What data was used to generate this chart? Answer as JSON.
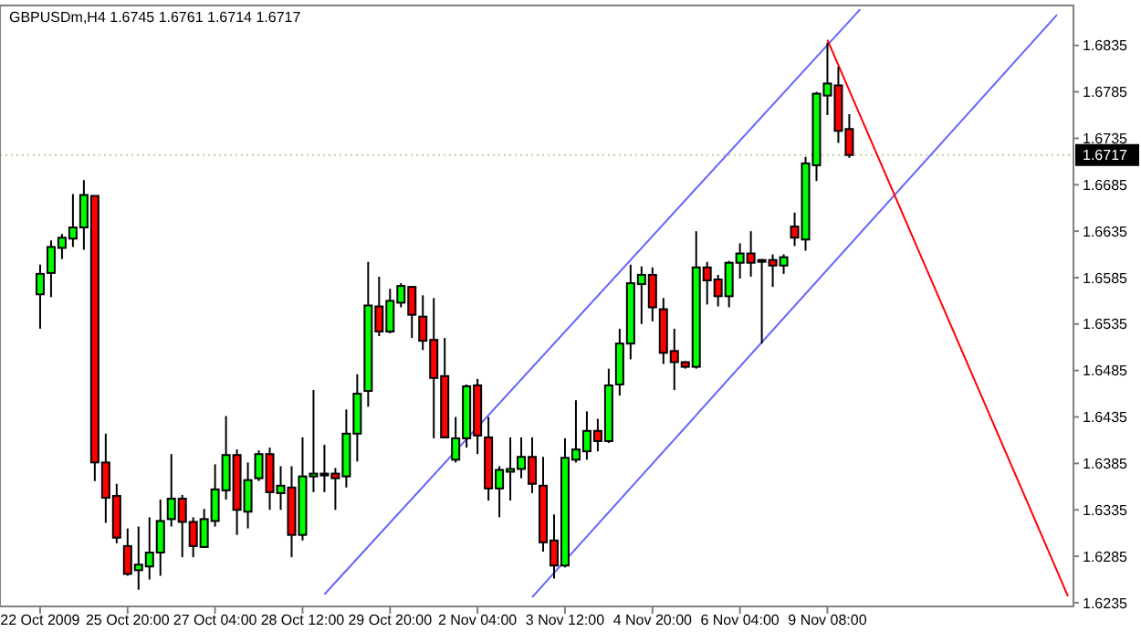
{
  "chart_data": {
    "type": "candlestick",
    "title": "GBPUSDm,H4  1.6745 1.6761 1.6714 1.6717",
    "categories": [
      "22 Oct 2009",
      null,
      null,
      null,
      null,
      null,
      null,
      null,
      "25 Oct 20:00",
      null,
      null,
      null,
      null,
      null,
      null,
      null,
      "27 Oct 04:00",
      null,
      null,
      null,
      null,
      null,
      null,
      null,
      "28 Oct 12:00",
      null,
      null,
      null,
      null,
      null,
      null,
      null,
      "29 Oct 20:00",
      null,
      null,
      null,
      null,
      null,
      null,
      null,
      "2 Nov 04:00",
      null,
      null,
      null,
      null,
      null,
      null,
      null,
      "3 Nov 12:00",
      null,
      null,
      null,
      null,
      null,
      null,
      null,
      "4 Nov 20:00",
      null,
      null,
      null,
      null,
      null,
      null,
      null,
      "6 Nov 04:00",
      null,
      null,
      null,
      null,
      null,
      null,
      null,
      "9 Nov 08:00",
      null,
      null,
      null,
      null,
      null,
      null,
      null,
      null,
      null,
      null,
      null,
      null,
      null,
      null,
      null,
      null,
      null,
      null,
      null,
      null,
      null,
      null
    ],
    "ohlc": [
      [
        1.6567,
        1.6599,
        1.653,
        1.6589
      ],
      [
        1.659,
        1.6625,
        1.6564,
        1.6618
      ],
      [
        1.6617,
        1.6632,
        1.6605,
        1.6628
      ],
      [
        1.6627,
        1.6675,
        1.6618,
        1.6639
      ],
      [
        1.6639,
        1.669,
        1.6615,
        1.6674
      ],
      [
        1.6673,
        1.6673,
        1.6366,
        1.6386
      ],
      [
        1.6386,
        1.6417,
        1.6321,
        1.6348
      ],
      [
        1.635,
        1.6363,
        1.6299,
        1.6305
      ],
      [
        1.6296,
        1.6315,
        1.6264,
        1.6266
      ],
      [
        1.627,
        1.6317,
        1.6249,
        1.6276
      ],
      [
        1.6274,
        1.6327,
        1.626,
        1.6289
      ],
      [
        1.6289,
        1.6346,
        1.6264,
        1.6323
      ],
      [
        1.6325,
        1.6395,
        1.6317,
        1.6347
      ],
      [
        1.6347,
        1.6351,
        1.6284,
        1.6322
      ],
      [
        1.6322,
        1.6327,
        1.6284,
        1.6296
      ],
      [
        1.6295,
        1.6336,
        1.6294,
        1.6325
      ],
      [
        1.6323,
        1.6384,
        1.6317,
        1.6357
      ],
      [
        1.6356,
        1.6436,
        1.6346,
        1.6394
      ],
      [
        1.6394,
        1.64,
        1.6308,
        1.6335
      ],
      [
        1.6333,
        1.6386,
        1.6315,
        1.6367
      ],
      [
        1.6369,
        1.6399,
        1.6366,
        1.6395
      ],
      [
        1.6395,
        1.6402,
        1.6335,
        1.6354
      ],
      [
        1.6353,
        1.6382,
        1.6335,
        1.6361
      ],
      [
        1.6359,
        1.6382,
        1.6284,
        1.6308
      ],
      [
        1.6308,
        1.6413,
        1.6302,
        1.6371
      ],
      [
        1.6371,
        1.6464,
        1.6354,
        1.6374
      ],
      [
        1.6374,
        1.6405,
        1.6354,
        1.6373
      ],
      [
        1.6374,
        1.638,
        1.6335,
        1.6369
      ],
      [
        1.6371,
        1.6443,
        1.6359,
        1.6417
      ],
      [
        1.6417,
        1.6481,
        1.6387,
        1.646
      ],
      [
        1.6463,
        1.6602,
        1.6446,
        1.6555
      ],
      [
        1.6554,
        1.6586,
        1.6522,
        1.6527
      ],
      [
        1.6527,
        1.6573,
        1.6525,
        1.656
      ],
      [
        1.6558,
        1.6579,
        1.6553,
        1.6576
      ],
      [
        1.6575,
        1.6576,
        1.652,
        1.6545
      ],
      [
        1.6543,
        1.6566,
        1.6507,
        1.6517
      ],
      [
        1.6518,
        1.6563,
        1.6412,
        1.6477
      ],
      [
        1.6479,
        1.652,
        1.6412,
        1.6413
      ],
      [
        1.6389,
        1.6435,
        1.6386,
        1.6412
      ],
      [
        1.6412,
        1.647,
        1.6402,
        1.6468
      ],
      [
        1.6469,
        1.6476,
        1.6395,
        1.6415
      ],
      [
        1.6413,
        1.6435,
        1.6345,
        1.6358
      ],
      [
        1.6358,
        1.6382,
        1.6327,
        1.6378
      ],
      [
        1.6376,
        1.6413,
        1.6345,
        1.6379
      ],
      [
        1.6379,
        1.6413,
        1.6369,
        1.6392
      ],
      [
        1.6392,
        1.6413,
        1.6353,
        1.6363
      ],
      [
        1.6361,
        1.6392,
        1.629,
        1.63
      ],
      [
        1.6302,
        1.633,
        1.6261,
        1.6275
      ],
      [
        1.6275,
        1.6412,
        1.6273,
        1.6391
      ],
      [
        1.6389,
        1.6453,
        1.6386,
        1.64
      ],
      [
        1.6398,
        1.6441,
        1.6389,
        1.642
      ],
      [
        1.642,
        1.6433,
        1.6398,
        1.6409
      ],
      [
        1.6409,
        1.6487,
        1.6407,
        1.6469
      ],
      [
        1.647,
        1.653,
        1.6458,
        1.6514
      ],
      [
        1.6514,
        1.6599,
        1.6497,
        1.6579
      ],
      [
        1.6578,
        1.6597,
        1.6535,
        1.6588
      ],
      [
        1.6588,
        1.6596,
        1.6538,
        1.6553
      ],
      [
        1.6551,
        1.6563,
        1.6492,
        1.6504
      ],
      [
        1.6506,
        1.653,
        1.6464,
        1.6494
      ],
      [
        1.6494,
        1.6495,
        1.6487,
        1.6489
      ],
      [
        1.6489,
        1.6635,
        1.6487,
        1.6596
      ],
      [
        1.6596,
        1.6602,
        1.6556,
        1.6582
      ],
      [
        1.6583,
        1.6588,
        1.6554,
        1.6565
      ],
      [
        1.6565,
        1.6603,
        1.6553,
        1.6601
      ],
      [
        1.6601,
        1.6622,
        1.6584,
        1.6611
      ],
      [
        1.6611,
        1.6635,
        1.6586,
        1.6601
      ],
      [
        1.6604,
        1.6605,
        1.6514,
        1.6603
      ],
      [
        1.6604,
        1.661,
        1.6575,
        1.6598
      ],
      [
        1.6598,
        1.661,
        1.6589,
        1.6607
      ],
      [
        1.664,
        1.6655,
        1.6619,
        1.6628
      ],
      [
        1.6626,
        1.6715,
        1.6614,
        1.6708
      ],
      [
        1.6706,
        1.6785,
        1.6689,
        1.6783
      ],
      [
        1.6781,
        1.6838,
        1.676,
        1.6794
      ],
      [
        1.6792,
        1.6812,
        1.673,
        1.6743
      ],
      [
        1.6745,
        1.6761,
        1.6714,
        1.6717
      ],
      null,
      null,
      null,
      null,
      null,
      null,
      null,
      null,
      null,
      null,
      null,
      null,
      null,
      null,
      null,
      null,
      null,
      null,
      null,
      null
    ],
    "colors": [
      "#00ff00",
      "#00ff00",
      "#00ff00",
      "#00ff00",
      "#00ff00",
      "#ff0000",
      "#ff0000",
      "#ff0000",
      "#ff0000",
      "#00ff00",
      "#00ff00",
      "#00ff00",
      "#00ff00",
      "#ff0000",
      "#ff0000",
      "#00ff00",
      "#00ff00",
      "#00ff00",
      "#ff0000",
      "#00ff00",
      "#00ff00",
      "#ff0000",
      "#00ff00",
      "#ff0000",
      "#00ff00",
      "#00ff00",
      "#ff0000",
      "#ff0000",
      "#00ff00",
      "#00ff00",
      "#00ff00",
      "#ff0000",
      "#00ff00",
      "#00ff00",
      "#ff0000",
      "#ff0000",
      "#ff0000",
      "#ff0000",
      "#00ff00",
      "#00ff00",
      "#ff0000",
      "#ff0000",
      "#00ff00",
      "#00ff00",
      "#00ff00",
      "#ff0000",
      "#ff0000",
      "#ff0000",
      "#00ff00",
      "#00ff00",
      "#00ff00",
      "#ff0000",
      "#00ff00",
      "#00ff00",
      "#00ff00",
      "#00ff00",
      "#ff0000",
      "#ff0000",
      "#ff0000",
      "#ff0000",
      "#00ff00",
      "#ff0000",
      "#ff0000",
      "#00ff00",
      "#00ff00",
      "#ff0000",
      "#ff0000",
      "#ff0000",
      "#00ff00",
      "#ff0000",
      "#00ff00",
      "#00ff00",
      "#00ff00",
      "#ff0000",
      "#ff0000",
      null,
      null,
      null,
      null,
      null,
      null,
      null,
      null,
      null,
      null,
      null,
      null,
      null,
      null,
      null,
      null,
      null,
      null,
      null,
      null
    ],
    "series": [
      {
        "type": "line",
        "color": "#6464ff",
        "values": [
          null,
          null,
          null,
          null,
          null,
          null,
          null,
          null,
          null,
          null,
          null,
          null,
          null,
          null,
          null,
          null,
          null,
          null,
          null,
          null,
          null,
          null,
          null,
          null,
          null,
          null,
          1.6244,
          null,
          null,
          null,
          null,
          null,
          null,
          null,
          null,
          null,
          null,
          null,
          null,
          null,
          null,
          null,
          null,
          null,
          null,
          null,
          null,
          null,
          null,
          null,
          null,
          null,
          null,
          null,
          null,
          null,
          null,
          null,
          null,
          null,
          null,
          null,
          null,
          null,
          null,
          null,
          null,
          null,
          null,
          null,
          null,
          null,
          null,
          null,
          null,
          1.6874,
          null,
          null,
          null,
          null,
          null,
          null,
          null,
          null,
          null,
          null,
          null,
          null,
          null,
          null,
          null,
          null,
          null,
          null,
          null
        ]
      },
      {
        "type": "line",
        "color": "#6464ff",
        "values": [
          null,
          null,
          null,
          null,
          null,
          null,
          null,
          null,
          null,
          null,
          null,
          null,
          null,
          null,
          null,
          null,
          null,
          null,
          null,
          null,
          null,
          null,
          null,
          null,
          null,
          null,
          null,
          null,
          null,
          null,
          null,
          null,
          null,
          null,
          null,
          null,
          null,
          null,
          null,
          null,
          null,
          null,
          null,
          null,
          null,
          1.6241,
          null,
          null,
          null,
          null,
          null,
          null,
          null,
          null,
          null,
          null,
          null,
          null,
          null,
          null,
          null,
          null,
          null,
          null,
          null,
          null,
          null,
          null,
          null,
          null,
          null,
          null,
          null,
          null,
          null,
          null,
          null,
          null,
          null,
          null,
          null,
          null,
          null,
          null,
          null,
          null,
          null,
          null,
          null,
          null,
          null,
          null,
          null,
          1.6868,
          null
        ]
      },
      {
        "type": "line",
        "color": "#ff0000",
        "values": [
          null,
          null,
          null,
          null,
          null,
          null,
          null,
          null,
          null,
          null,
          null,
          null,
          null,
          null,
          null,
          null,
          null,
          null,
          null,
          null,
          null,
          null,
          null,
          null,
          null,
          null,
          null,
          null,
          null,
          null,
          null,
          null,
          null,
          null,
          null,
          null,
          null,
          null,
          null,
          null,
          null,
          null,
          null,
          null,
          null,
          null,
          null,
          null,
          null,
          null,
          null,
          null,
          null,
          null,
          null,
          null,
          null,
          null,
          null,
          null,
          null,
          null,
          null,
          null,
          null,
          null,
          null,
          null,
          null,
          null,
          null,
          null,
          1.6841,
          null,
          null,
          null,
          null,
          null,
          null,
          null,
          null,
          null,
          null,
          null,
          null,
          null,
          null,
          null,
          null,
          null,
          null,
          null,
          null,
          null,
          1.6242
        ]
      }
    ],
    "ylim": [
      1.6231,
      1.6878
    ],
    "yticks": [
      1.6235,
      1.6285,
      1.6335,
      1.6385,
      1.6435,
      1.6485,
      1.6535,
      1.6585,
      1.6635,
      1.6685,
      1.6735,
      1.6785,
      1.6835
    ],
    "ref_lines": [
      {
        "axis": "y",
        "value": 1.6717,
        "label": "1.6717",
        "color": "#c8c8a0",
        "line_style": "dotted"
      }
    ]
  }
}
